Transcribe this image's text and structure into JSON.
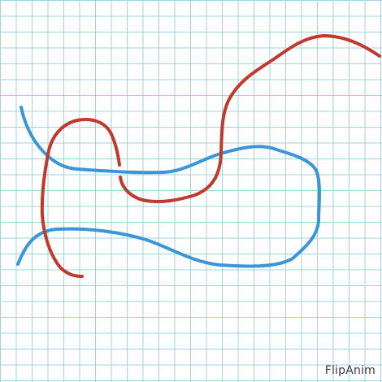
{
  "app": {
    "watermark": "FlipAnim"
  },
  "canvas": {
    "background": "#ffffff",
    "grid_color": "#9fd3e3",
    "strokes": [
      {
        "name": "blue-stroke",
        "color": "#3a96d8"
      },
      {
        "name": "red-stroke",
        "color": "#c0392b"
      }
    ]
  }
}
